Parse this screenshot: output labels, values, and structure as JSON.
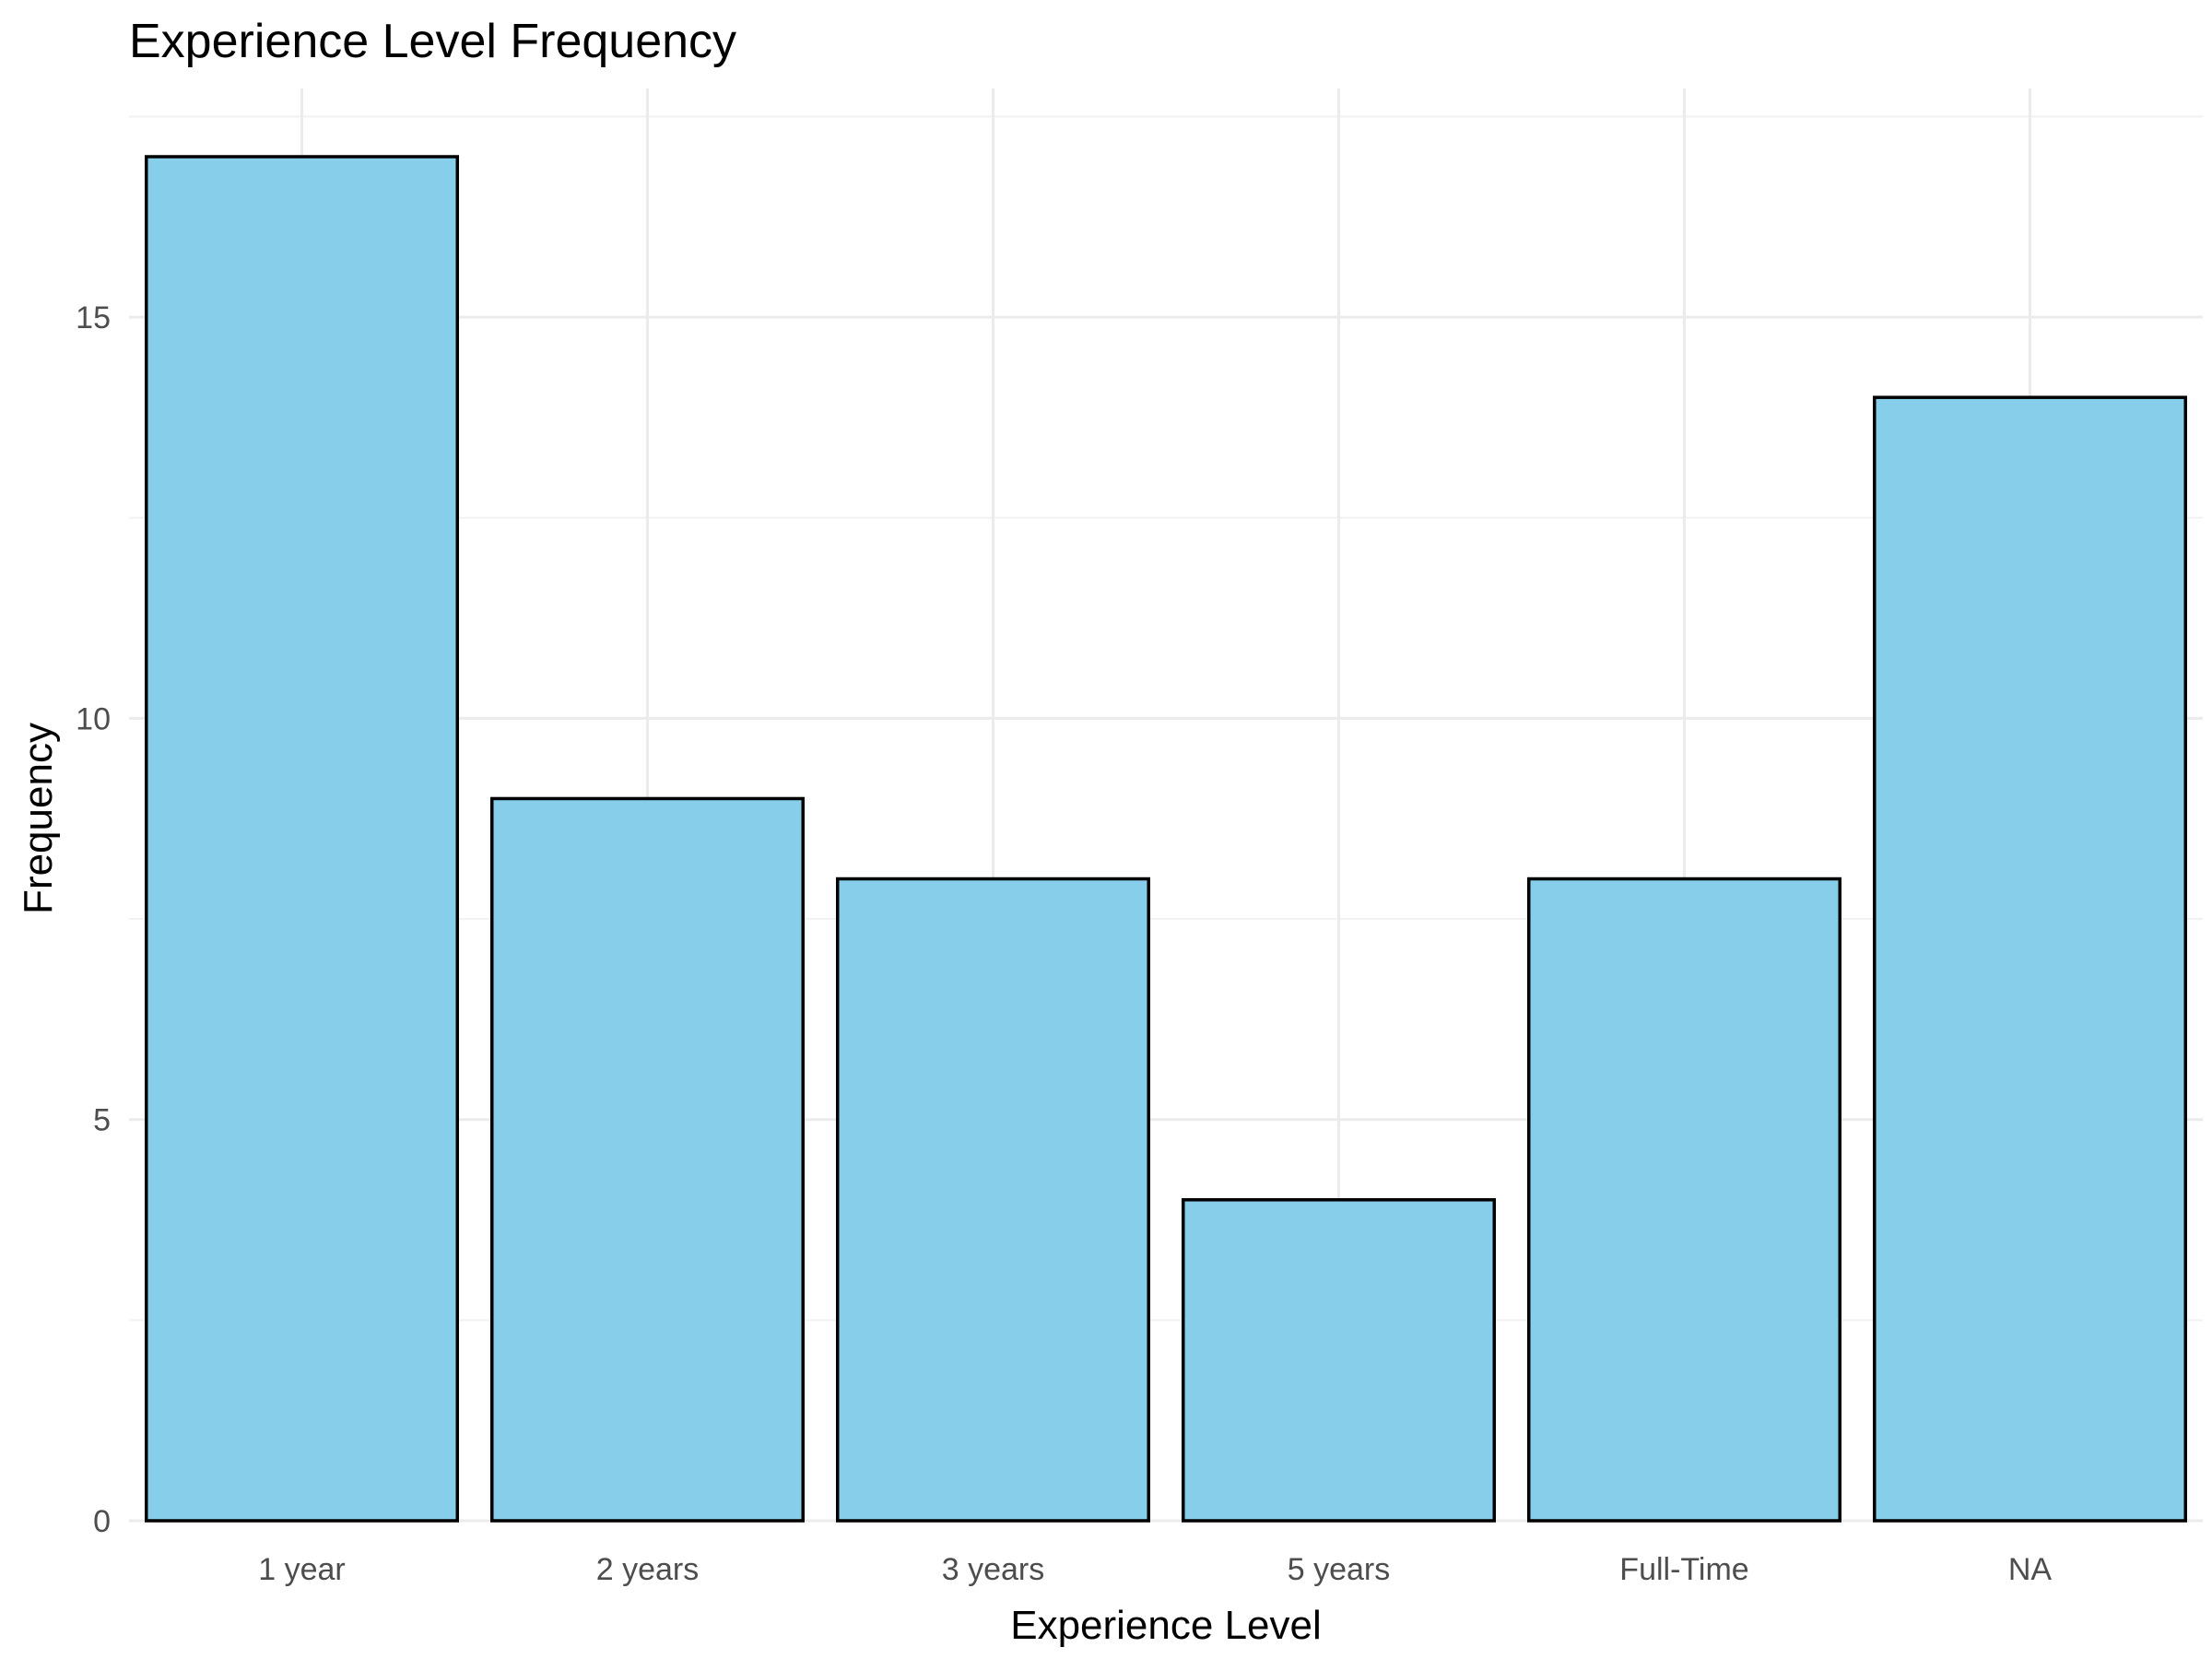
{
  "chart_data": {
    "type": "bar",
    "title": "Experience Level Frequency",
    "xlabel": "Experience Level",
    "ylabel": "Frequency",
    "categories": [
      "1 year",
      "2 years",
      "3 years",
      "5 years",
      "Full-Time",
      "NA"
    ],
    "values": [
      17,
      9,
      8,
      4,
      8,
      14
    ],
    "ylim": [
      0,
      17.85
    ],
    "yticks": [
      0,
      5,
      10,
      15
    ],
    "grid": true,
    "bar_color": "#87CEEB",
    "bar_outline": "#000000"
  }
}
